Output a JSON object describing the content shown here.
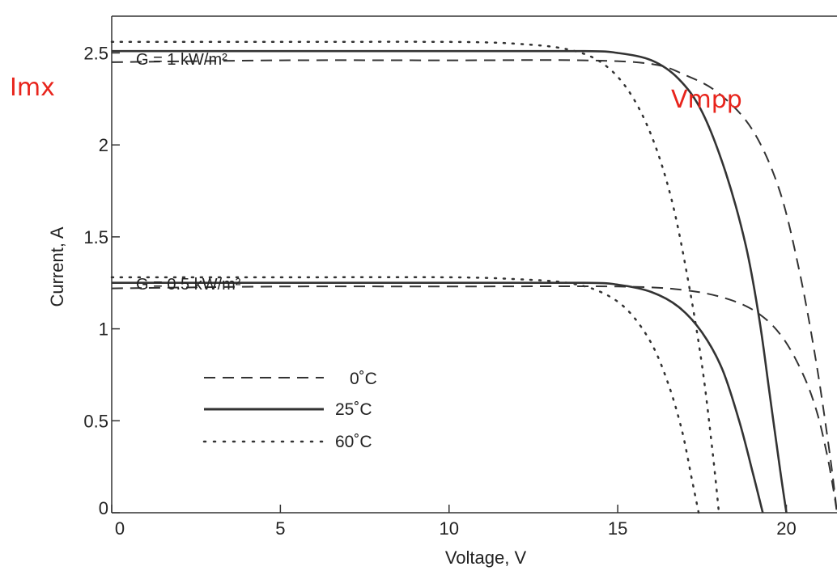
{
  "chart_data": {
    "type": "line",
    "xlabel": "Voltage, V",
    "ylabel": "Current, A",
    "xlim": [
      0,
      21.5
    ],
    "ylim": [
      0,
      2.7
    ],
    "x_ticks": [
      "0",
      "5",
      "10",
      "15",
      "20"
    ],
    "x_tick_values": [
      0,
      5,
      10,
      15,
      20
    ],
    "y_ticks": [
      "0",
      "0.5",
      "1",
      "1.5",
      "2",
      "2.5"
    ],
    "y_tick_values": [
      0,
      0.5,
      1,
      1.5,
      2,
      2.5
    ],
    "grid": false,
    "legend_position": "lower-left",
    "annotations": {
      "g1": "G = 1 kW/m²",
      "g05": "G = 0.5 kW/m²",
      "imx": "Imx",
      "vmpp": "Vmpp"
    },
    "annotation_color": "#e8241c",
    "legend": [
      {
        "label": "0˚C",
        "style": "dashed"
      },
      {
        "label": "25˚C",
        "style": "solid"
      },
      {
        "label": "60˚C",
        "style": "dotted"
      }
    ],
    "series": [
      {
        "group": "G = 1 kW/m²",
        "label": "0˚C",
        "style": "dashed",
        "x": [
          0,
          5,
          10,
          14,
          16,
          17,
          18,
          19,
          19.8,
          20.4,
          20.9,
          21.3,
          21.5
        ],
        "y": [
          2.45,
          2.46,
          2.46,
          2.46,
          2.44,
          2.38,
          2.28,
          2.08,
          1.75,
          1.3,
          0.8,
          0.3,
          0.0
        ]
      },
      {
        "group": "G = 1 kW/m²",
        "label": "25˚C",
        "style": "solid",
        "x": [
          0,
          5,
          10,
          14,
          15,
          16,
          16.8,
          17.5,
          18.2,
          18.8,
          19.2,
          19.5,
          19.8,
          20.0
        ],
        "y": [
          2.51,
          2.51,
          2.51,
          2.51,
          2.5,
          2.46,
          2.36,
          2.18,
          1.85,
          1.45,
          1.05,
          0.65,
          0.25,
          0.0
        ]
      },
      {
        "group": "G = 1 kW/m²",
        "label": "60˚C",
        "style": "dotted",
        "x": [
          0,
          5,
          10,
          12,
          13.5,
          14.5,
          15.3,
          16,
          16.6,
          17.1,
          17.5,
          17.8,
          18.0
        ],
        "y": [
          2.56,
          2.56,
          2.56,
          2.55,
          2.52,
          2.45,
          2.3,
          2.05,
          1.7,
          1.25,
          0.8,
          0.35,
          0.0
        ]
      },
      {
        "group": "G = 0.5 kW/m²",
        "label": "0˚C",
        "style": "dashed",
        "x": [
          0,
          5,
          10,
          15,
          17,
          18.3,
          19.2,
          19.9,
          20.5,
          20.9,
          21.2,
          21.4,
          21.5
        ],
        "y": [
          1.22,
          1.23,
          1.23,
          1.23,
          1.21,
          1.16,
          1.08,
          0.95,
          0.75,
          0.55,
          0.32,
          0.12,
          0.0
        ]
      },
      {
        "group": "G = 0.5 kW/m²",
        "label": "25˚C",
        "style": "solid",
        "x": [
          0,
          5,
          10,
          14,
          15,
          16,
          16.8,
          17.5,
          18.1,
          18.6,
          19.0,
          19.3
        ],
        "y": [
          1.25,
          1.25,
          1.25,
          1.25,
          1.24,
          1.2,
          1.12,
          0.98,
          0.78,
          0.5,
          0.22,
          0.0
        ]
      },
      {
        "group": "G = 0.5 kW/m²",
        "label": "60˚C",
        "style": "dotted",
        "x": [
          0,
          5,
          10,
          12,
          13.5,
          14.5,
          15.3,
          16,
          16.5,
          16.9,
          17.2,
          17.4
        ],
        "y": [
          1.28,
          1.28,
          1.28,
          1.27,
          1.25,
          1.2,
          1.1,
          0.92,
          0.7,
          0.45,
          0.18,
          0.0
        ]
      }
    ]
  }
}
